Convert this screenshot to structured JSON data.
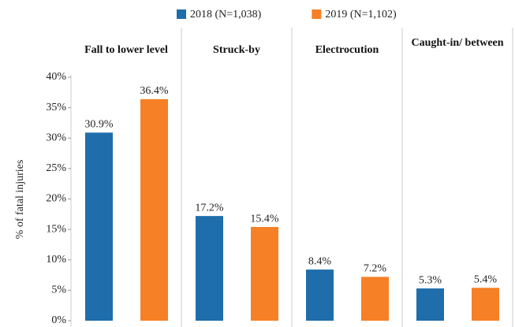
{
  "chart_data": {
    "type": "bar",
    "categories": [
      "Fall to lower level",
      "Struck-by",
      "Electrocution",
      "Caught-in/ between"
    ],
    "series": [
      {
        "name": "2018 (N=1,038)",
        "color": "#1f6dab",
        "values": [
          30.9,
          17.2,
          8.4,
          5.3
        ],
        "value_labels": [
          "30.9%",
          "17.2%",
          "8.4%",
          "5.3%"
        ]
      },
      {
        "name": "2019 (N=1,102)",
        "color": "#f58025",
        "values": [
          36.4,
          15.4,
          7.2,
          5.4
        ],
        "value_labels": [
          "36.4%",
          "15.4%",
          "7.2%",
          "5.4%"
        ]
      }
    ],
    "y_label": "% of fatal injuries",
    "ylim": [
      0,
      40
    ],
    "yticks": [
      {
        "value": 0,
        "label": "0%"
      },
      {
        "value": 5,
        "label": "5%"
      },
      {
        "value": 10,
        "label": "10%"
      },
      {
        "value": 15,
        "label": "15%"
      },
      {
        "value": 20,
        "label": "20%"
      },
      {
        "value": 25,
        "label": "25%"
      },
      {
        "value": 30,
        "label": "30%"
      },
      {
        "value": 35,
        "label": "35%"
      },
      {
        "value": 40,
        "label": "40%"
      }
    ],
    "legend": "top"
  }
}
